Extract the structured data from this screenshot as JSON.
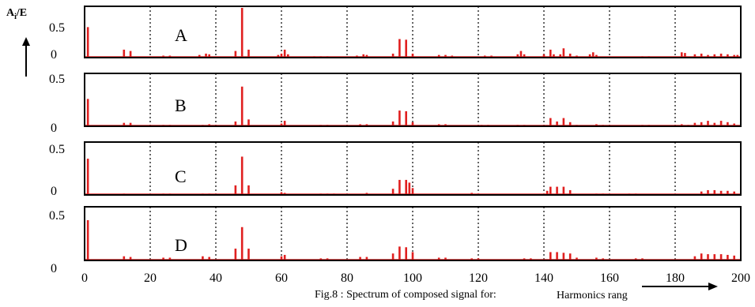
{
  "figure": {
    "y_axis_label_main": "A",
    "y_axis_label_sub": "i",
    "y_axis_label_tail": "/E",
    "caption": "Fig.8 : Spectrum of composed signal for:",
    "x_axis_label": "Harmonics rang"
  },
  "chart_data": {
    "type": "bar",
    "xlim": [
      0,
      200
    ],
    "x_ticks": [
      "0",
      "20",
      "40",
      "60",
      "80",
      "100",
      "120",
      "140",
      "160",
      "180",
      "200"
    ],
    "x_gridlines": [
      20,
      40,
      60,
      80,
      100,
      120,
      140,
      160,
      180
    ],
    "ylim": [
      0,
      0.75
    ],
    "panels": [
      {
        "label": "A",
        "y_ticks": [
          "0.5",
          "0"
        ],
        "bars": [
          [
            1,
            0.46
          ],
          [
            12,
            0.12
          ],
          [
            14,
            0.1
          ],
          [
            24,
            0.03
          ],
          [
            26,
            0.03
          ],
          [
            35,
            0.04
          ],
          [
            37,
            0.06
          ],
          [
            38,
            0.05
          ],
          [
            46,
            0.1
          ],
          [
            48,
            0.75
          ],
          [
            50,
            0.12
          ],
          [
            59,
            0.04
          ],
          [
            60,
            0.06
          ],
          [
            61,
            0.12
          ],
          [
            62,
            0.05
          ],
          [
            70,
            0.02
          ],
          [
            72,
            0.02
          ],
          [
            74,
            0.02
          ],
          [
            83,
            0.03
          ],
          [
            85,
            0.05
          ],
          [
            86,
            0.04
          ],
          [
            94,
            0.06
          ],
          [
            96,
            0.28
          ],
          [
            98,
            0.27
          ],
          [
            100,
            0.06
          ],
          [
            108,
            0.04
          ],
          [
            110,
            0.04
          ],
          [
            112,
            0.03
          ],
          [
            122,
            0.03
          ],
          [
            124,
            0.03
          ],
          [
            132,
            0.05
          ],
          [
            133,
            0.1
          ],
          [
            134,
            0.05
          ],
          [
            140,
            0.05
          ],
          [
            142,
            0.12
          ],
          [
            143,
            0.05
          ],
          [
            145,
            0.05
          ],
          [
            146,
            0.14
          ],
          [
            148,
            0.06
          ],
          [
            150,
            0.03
          ],
          [
            154,
            0.05
          ],
          [
            155,
            0.08
          ],
          [
            156,
            0.04
          ],
          [
            170,
            0.02
          ],
          [
            172,
            0.02
          ],
          [
            182,
            0.08
          ],
          [
            183,
            0.07
          ],
          [
            186,
            0.05
          ],
          [
            188,
            0.06
          ],
          [
            190,
            0.04
          ],
          [
            192,
            0.05
          ],
          [
            194,
            0.06
          ],
          [
            196,
            0.05
          ],
          [
            198,
            0.04
          ],
          [
            199,
            0.04
          ]
        ]
      },
      {
        "label": "B",
        "y_ticks": [
          "0.5",
          "0"
        ],
        "bars": [
          [
            1,
            0.4
          ],
          [
            12,
            0.05
          ],
          [
            14,
            0.05
          ],
          [
            24,
            0.02
          ],
          [
            26,
            0.02
          ],
          [
            36,
            0.02
          ],
          [
            38,
            0.03
          ],
          [
            46,
            0.07
          ],
          [
            48,
            0.58
          ],
          [
            50,
            0.1
          ],
          [
            60,
            0.04
          ],
          [
            61,
            0.08
          ],
          [
            72,
            0.02
          ],
          [
            74,
            0.02
          ],
          [
            84,
            0.03
          ],
          [
            86,
            0.03
          ],
          [
            94,
            0.07
          ],
          [
            96,
            0.23
          ],
          [
            98,
            0.22
          ],
          [
            100,
            0.06
          ],
          [
            108,
            0.03
          ],
          [
            110,
            0.03
          ],
          [
            121,
            0.02
          ],
          [
            123,
            0.02
          ],
          [
            132,
            0.02
          ],
          [
            134,
            0.02
          ],
          [
            142,
            0.12
          ],
          [
            144,
            0.07
          ],
          [
            146,
            0.12
          ],
          [
            148,
            0.06
          ],
          [
            150,
            0.02
          ],
          [
            156,
            0.03
          ],
          [
            158,
            0.02
          ],
          [
            170,
            0.02
          ],
          [
            172,
            0.02
          ],
          [
            182,
            0.03
          ],
          [
            184,
            0.02
          ],
          [
            186,
            0.05
          ],
          [
            188,
            0.06
          ],
          [
            190,
            0.08
          ],
          [
            192,
            0.05
          ],
          [
            194,
            0.08
          ],
          [
            196,
            0.06
          ],
          [
            198,
            0.04
          ]
        ]
      },
      {
        "label": "C",
        "y_ticks": [
          "0.5",
          "0"
        ],
        "bars": [
          [
            1,
            0.53
          ],
          [
            12,
            0.02
          ],
          [
            24,
            0.02
          ],
          [
            26,
            0.02
          ],
          [
            36,
            0.02
          ],
          [
            38,
            0.02
          ],
          [
            46,
            0.14
          ],
          [
            48,
            0.56
          ],
          [
            50,
            0.14
          ],
          [
            60,
            0.04
          ],
          [
            61,
            0.03
          ],
          [
            72,
            0.02
          ],
          [
            74,
            0.02
          ],
          [
            76,
            0.02
          ],
          [
            86,
            0.03
          ],
          [
            94,
            0.09
          ],
          [
            96,
            0.22
          ],
          [
            98,
            0.22
          ],
          [
            99,
            0.18
          ],
          [
            100,
            0.1
          ],
          [
            118,
            0.03
          ],
          [
            120,
            0.02
          ],
          [
            141,
            0.06
          ],
          [
            142,
            0.12
          ],
          [
            144,
            0.12
          ],
          [
            146,
            0.12
          ],
          [
            148,
            0.07
          ],
          [
            156,
            0.02
          ],
          [
            158,
            0.02
          ],
          [
            166,
            0.02
          ],
          [
            168,
            0.02
          ],
          [
            188,
            0.05
          ],
          [
            190,
            0.07
          ],
          [
            192,
            0.07
          ],
          [
            194,
            0.06
          ],
          [
            196,
            0.06
          ],
          [
            198,
            0.05
          ]
        ]
      },
      {
        "label": "D",
        "y_ticks": [
          "0.5",
          "0"
        ],
        "bars": [
          [
            1,
            0.58
          ],
          [
            12,
            0.06
          ],
          [
            14,
            0.05
          ],
          [
            24,
            0.04
          ],
          [
            26,
            0.04
          ],
          [
            36,
            0.06
          ],
          [
            38,
            0.05
          ],
          [
            46,
            0.17
          ],
          [
            48,
            0.48
          ],
          [
            50,
            0.17
          ],
          [
            60,
            0.06
          ],
          [
            61,
            0.08
          ],
          [
            72,
            0.03
          ],
          [
            74,
            0.03
          ],
          [
            84,
            0.05
          ],
          [
            86,
            0.05
          ],
          [
            94,
            0.1
          ],
          [
            96,
            0.2
          ],
          [
            98,
            0.19
          ],
          [
            100,
            0.12
          ],
          [
            108,
            0.04
          ],
          [
            110,
            0.04
          ],
          [
            118,
            0.03
          ],
          [
            120,
            0.03
          ],
          [
            134,
            0.03
          ],
          [
            136,
            0.03
          ],
          [
            142,
            0.12
          ],
          [
            144,
            0.12
          ],
          [
            146,
            0.11
          ],
          [
            148,
            0.1
          ],
          [
            150,
            0.04
          ],
          [
            156,
            0.04
          ],
          [
            158,
            0.03
          ],
          [
            168,
            0.03
          ],
          [
            170,
            0.03
          ],
          [
            186,
            0.06
          ],
          [
            188,
            0.1
          ],
          [
            190,
            0.09
          ],
          [
            192,
            0.09
          ],
          [
            194,
            0.09
          ],
          [
            196,
            0.08
          ],
          [
            198,
            0.07
          ]
        ]
      }
    ]
  },
  "colors": {
    "bar": "#e02020",
    "frame": "#000000",
    "grid": "#000000"
  }
}
